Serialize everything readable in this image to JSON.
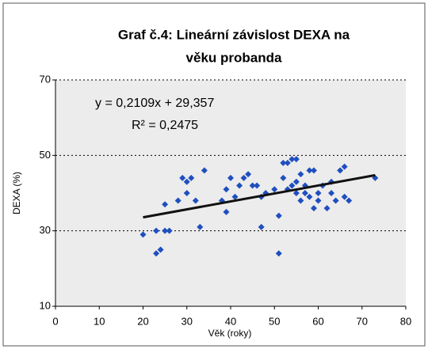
{
  "chart_data": {
    "type": "scatter",
    "title": [
      "Graf č.4: Lineární závislost DEXA na",
      "věku probanda"
    ],
    "xlabel": "Věk (roky)",
    "ylabel": "DEXA (%)",
    "x": [
      20,
      23,
      23,
      24,
      25,
      25,
      26,
      28,
      29,
      30,
      30,
      31,
      32,
      33,
      34,
      38,
      39,
      39,
      40,
      41,
      42,
      43,
      44,
      45,
      46,
      47,
      47,
      48,
      50,
      51,
      51,
      52,
      52,
      53,
      53,
      54,
      54,
      55,
      55,
      55,
      56,
      56,
      57,
      57,
      58,
      58,
      59,
      59,
      60,
      60,
      61,
      62,
      63,
      63,
      64,
      65,
      66,
      66,
      67,
      73
    ],
    "values": [
      29,
      30,
      24,
      25,
      30,
      37,
      30,
      38,
      44,
      43,
      40,
      44,
      38,
      31,
      46,
      38,
      35,
      41,
      44,
      39,
      42,
      44,
      45,
      42,
      42,
      31,
      39,
      40,
      41,
      34,
      24,
      44,
      48,
      48,
      41,
      42,
      49,
      49,
      43,
      40,
      45,
      38,
      42,
      40,
      39,
      46,
      36,
      46,
      38,
      40,
      42,
      36,
      40,
      43,
      38,
      46,
      47,
      39,
      38,
      44
    ],
    "color": "#1f4fbf",
    "xlim": [
      0,
      80
    ],
    "xticks": [
      0,
      10,
      20,
      30,
      40,
      50,
      60,
      70,
      80
    ],
    "ylim": [
      10,
      70
    ],
    "yticks": [
      10,
      30,
      50,
      70
    ],
    "grid": true,
    "trendline": {
      "equation": "y = 0,2109x + 29,357",
      "r2": "R² = 0,2475",
      "slope": 0.2109,
      "intercept": 29.357,
      "x_range": [
        20,
        73
      ]
    }
  }
}
